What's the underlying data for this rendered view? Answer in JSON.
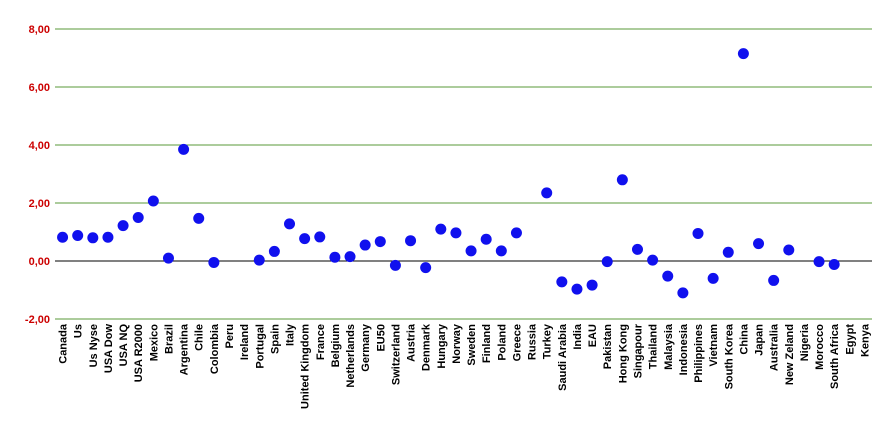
{
  "chart_data": {
    "type": "scatter",
    "title": "",
    "xlabel": "",
    "ylabel": "",
    "ylim": [
      -2,
      8
    ],
    "yticks": [
      -2,
      0,
      2,
      4,
      6,
      8
    ],
    "ytick_labels": [
      "-2,00",
      "0,00",
      "2,00",
      "4,00",
      "6,00",
      "8,00"
    ],
    "grid": "horizontal",
    "colors": {
      "marker": "#1010ee",
      "grid": "#5a9a3a",
      "zero_line": "#000000",
      "ytick": "#cc0000"
    },
    "categories": [
      "Canada",
      "Us",
      "Us Nyse",
      "USA Dow",
      "USA NQ",
      "USA R2000",
      "Mexico",
      "Brazil",
      "Argentina",
      "Chile",
      "Colombia",
      "Peru",
      "Ireland",
      "Portugal",
      "Spain",
      "Italy",
      "United Kingdom",
      "France",
      "Belgium",
      "Netherlands",
      "Germany",
      "EU50",
      "Switzerland",
      "Austria",
      "Denmark",
      "Hungary",
      "Norway",
      "Sweden",
      "Finland",
      "Poland",
      "Greece",
      "Russia",
      "Turkey",
      "Saudi Arabia",
      "India",
      "EAU",
      "Pakistan",
      "Hong Kong",
      "Singapour",
      "Thailand",
      "Malaysia",
      "Indonesia",
      "Philippines",
      "Vietnam",
      "South Korea",
      "China",
      "Japan",
      "Australia",
      "New Zeland",
      "Nigeria",
      "Morocco",
      "South Africa",
      "Egypt",
      "Kenya"
    ],
    "values": [
      0.82,
      0.88,
      0.8,
      0.82,
      1.22,
      1.5,
      2.07,
      0.1,
      3.85,
      1.47,
      -0.05,
      null,
      null,
      0.03,
      0.33,
      1.28,
      0.77,
      0.83,
      0.13,
      0.15,
      0.55,
      0.67,
      -0.15,
      0.7,
      -0.23,
      1.1,
      0.97,
      0.35,
      0.75,
      0.35,
      0.97,
      null,
      2.35,
      -0.72,
      -0.97,
      -0.83,
      -0.02,
      2.8,
      0.4,
      0.03,
      -0.52,
      -1.1,
      0.95,
      -0.6,
      0.3,
      7.15,
      0.6,
      -0.67,
      0.38,
      null,
      -0.02,
      -0.12,
      null,
      null
    ]
  }
}
